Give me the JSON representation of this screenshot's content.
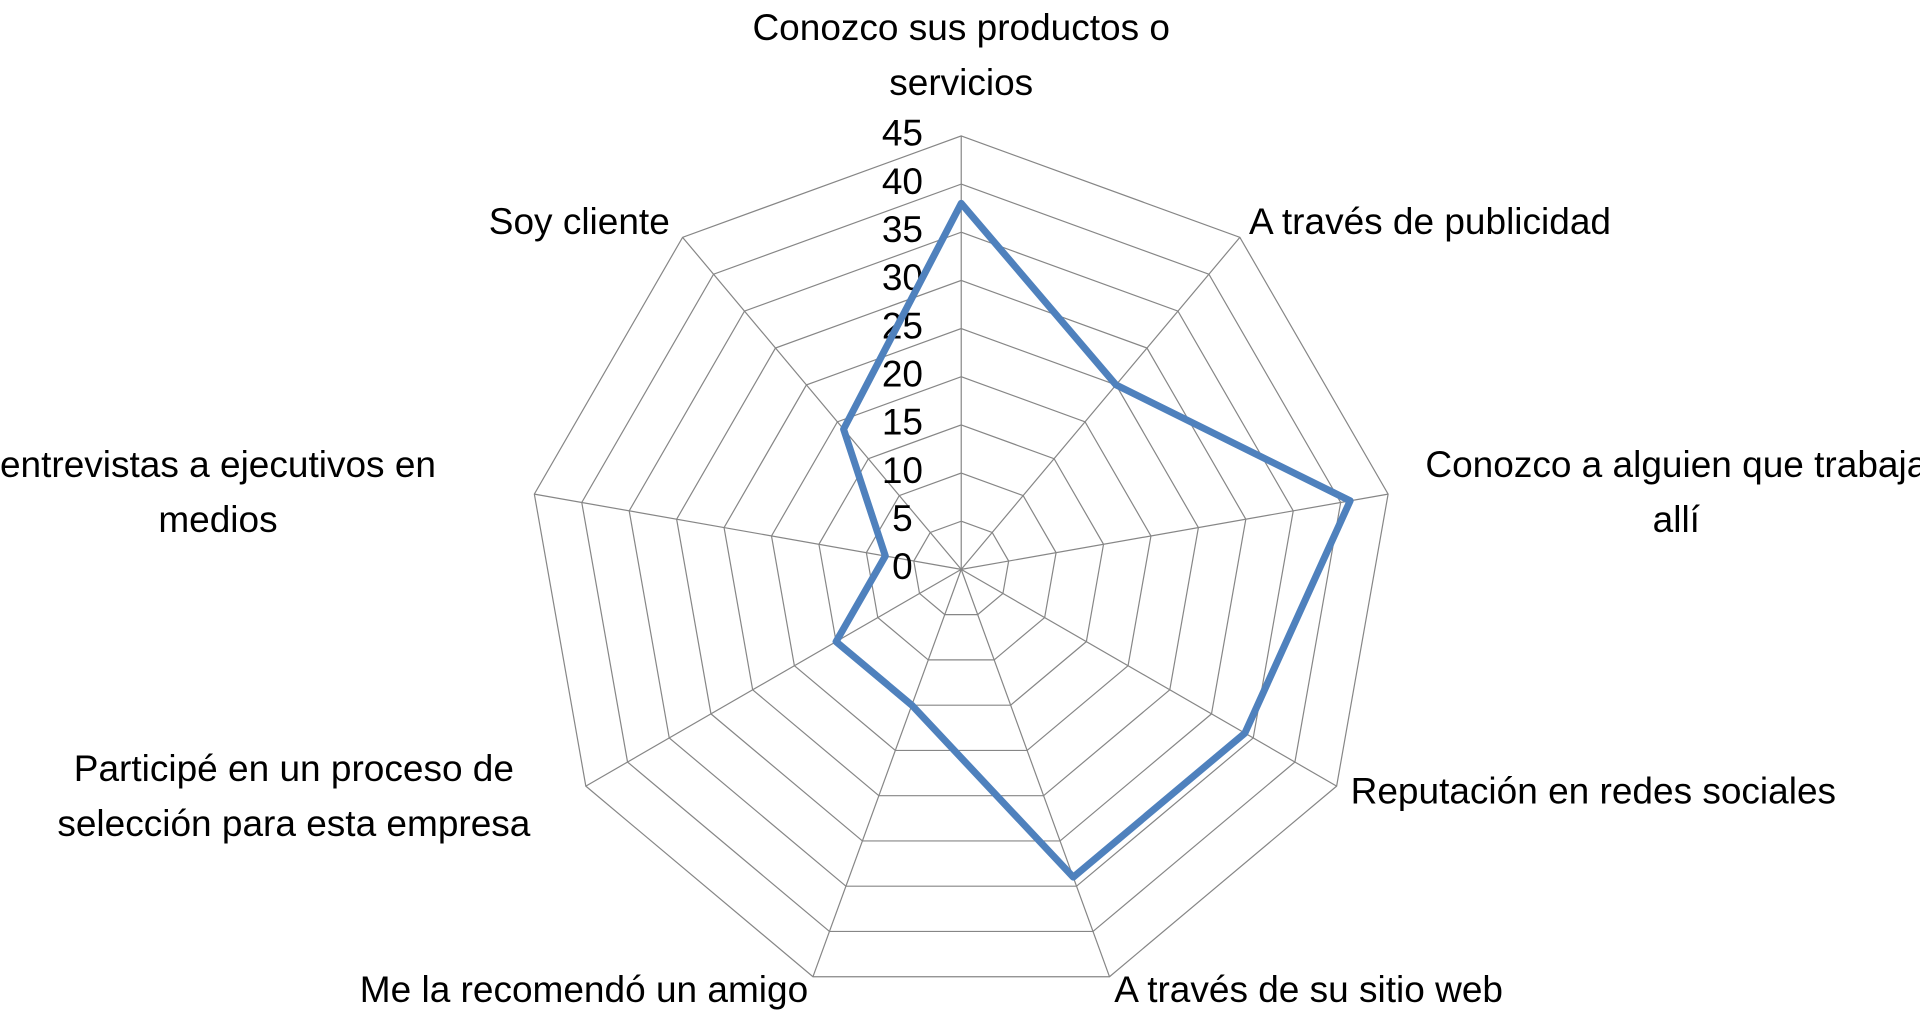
{
  "chart_data": {
    "type": "radar",
    "categories": [
      "Conozco sus productos o servicios",
      "A través de publicidad",
      "Conozco a alguien que trabaja allí",
      "Reputación en redes sociales",
      "A través de su sitio web",
      "Me la recomendó un amigo",
      "Participé en un proceso de selección para esta empresa",
      "entrevistas a ejecutivos en medios",
      "Soy cliente"
    ],
    "series": [
      {
        "color": "#4f81bd",
        "values": [
          38,
          25,
          41,
          34,
          34,
          15,
          15,
          8,
          19
        ]
      }
    ],
    "ylim": [
      0,
      45
    ],
    "yticks": [
      0,
      5,
      10,
      15,
      20,
      25,
      30,
      35,
      40,
      45
    ],
    "grid": true
  }
}
